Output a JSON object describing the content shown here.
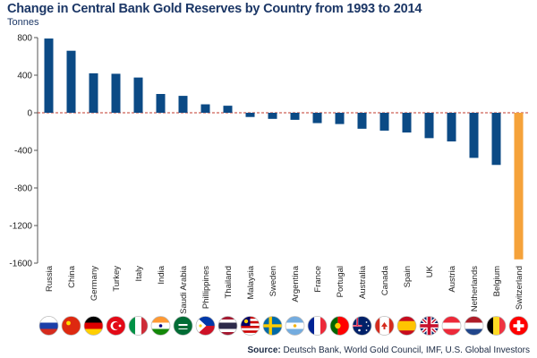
{
  "title": "Change in Central Bank Gold Reserves by Country from 1993 to 2014",
  "source_label": "Source:",
  "source_text": "Deutsch Bank, World Gold Council, IMF, U.S. Global Investors",
  "colors": {
    "bar": "#0b4a85",
    "highlight": "#f5a23a",
    "zero_line": "#c0392b",
    "axis": "#555555"
  },
  "chart_data": {
    "type": "bar",
    "ylabel": "Tonnes",
    "ylim": [
      -1600,
      800
    ],
    "yticks": [
      800,
      400,
      0,
      -400,
      -800,
      -1200,
      -1600
    ],
    "categories": [
      "Russia",
      "China",
      "Germany",
      "Turkey",
      "Italy",
      "India",
      "Saudi Arabia",
      "Phillippines",
      "Thailand",
      "Malaysia",
      "Sweden",
      "Argentina",
      "France",
      "Portugal",
      "Australia",
      "Canada",
      "Spain",
      "UK",
      "Austria",
      "Netherlands",
      "Belgium",
      "Switzerland"
    ],
    "values": [
      790,
      660,
      420,
      415,
      375,
      200,
      180,
      90,
      75,
      -45,
      -65,
      -75,
      -110,
      -120,
      -170,
      -190,
      -210,
      -270,
      -305,
      -480,
      -555,
      -1560
    ],
    "highlight": [
      "Switzerland"
    ],
    "flags": [
      "russia-flag",
      "china-flag",
      "germany-flag",
      "turkey-flag",
      "italy-flag",
      "india-flag",
      "saudi-arabia-flag",
      "philippines-flag",
      "thailand-flag",
      "malaysia-flag",
      "sweden-flag",
      "argentina-flag",
      "france-flag",
      "portugal-flag",
      "australia-flag",
      "canada-flag",
      "spain-flag",
      "uk-flag",
      "austria-flag",
      "netherlands-flag",
      "belgium-flag",
      "switzerland-flag"
    ]
  }
}
